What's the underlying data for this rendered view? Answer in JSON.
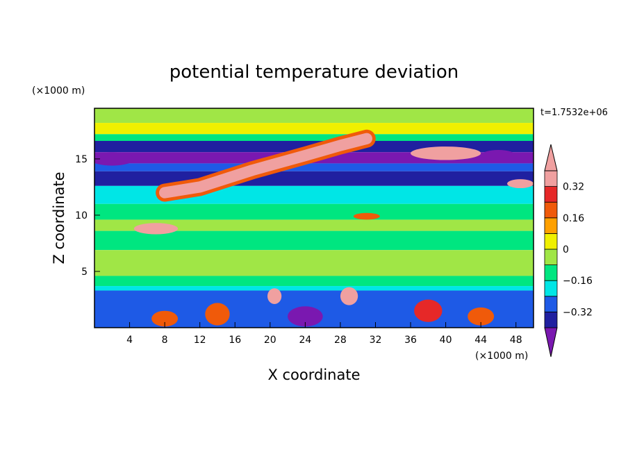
{
  "chart_data": {
    "type": "heatmap",
    "title": "potential temperature deviation",
    "xlabel": "X coordinate",
    "ylabel": "Z coordinate",
    "x_unit": "(×1000 m)",
    "y_unit": "(×1000 m)",
    "time_label": "t=1.7532e+06",
    "x_ticks": [
      4,
      8,
      12,
      16,
      20,
      24,
      28,
      32,
      36,
      40,
      44,
      48
    ],
    "y_ticks": [
      5,
      10,
      15
    ],
    "xlim": [
      0,
      50
    ],
    "ylim": [
      0,
      19.5
    ],
    "colorbar": {
      "levels": [
        -0.4,
        -0.32,
        -0.24,
        -0.16,
        -0.08,
        0,
        0.08,
        0.16,
        0.24,
        0.32,
        0.4
      ],
      "tick_labels": [
        "0.32",
        "0.16",
        "0",
        "−0.16",
        "−0.32"
      ],
      "tick_values": [
        0.32,
        0.16,
        0,
        -0.16,
        -0.32
      ],
      "colors": [
        "#7a18b0",
        "#2020a0",
        "#1e5ae6",
        "#00e6e6",
        "#00e680",
        "#a0e646",
        "#f0f000",
        "#ffa000",
        "#f05a0a",
        "#e62828",
        "#f0a0a0"
      ]
    },
    "bands": [
      {
        "z0": 18.2,
        "z1": 19.5,
        "level": 5
      },
      {
        "z0": 17.2,
        "z1": 18.2,
        "level": 6
      },
      {
        "z0": 16.6,
        "z1": 17.2,
        "level": 4
      },
      {
        "z0": 15.6,
        "z1": 16.6,
        "level": 1
      },
      {
        "z0": 14.6,
        "z1": 15.6,
        "level": 0
      },
      {
        "z0": 13.9,
        "z1": 14.6,
        "level": 2
      },
      {
        "z0": 12.6,
        "z1": 13.9,
        "level": 1
      },
      {
        "z0": 11.0,
        "z1": 12.6,
        "level": 3
      },
      {
        "z0": 9.6,
        "z1": 11.0,
        "level": 4
      },
      {
        "z0": 8.6,
        "z1": 9.6,
        "level": 5
      },
      {
        "z0": 6.9,
        "z1": 8.6,
        "level": 4
      },
      {
        "z0": 4.6,
        "z1": 6.9,
        "level": 5
      },
      {
        "z0": 3.7,
        "z1": 4.6,
        "level": 4
      },
      {
        "z0": 3.3,
        "z1": 3.7,
        "level": 3
      },
      {
        "z0": 0.0,
        "z1": 3.3,
        "level": 2
      }
    ],
    "features": [
      {
        "shape": "streak",
        "x": [
          8,
          12,
          18,
          24,
          28,
          31
        ],
        "z": [
          12.0,
          12.5,
          14.0,
          15.3,
          16.2,
          16.8
        ],
        "width": 1.0,
        "level": 10
      },
      {
        "shape": "blob",
        "cx": 40.0,
        "cz": 15.5,
        "rx": 4.0,
        "rz": 0.6,
        "level": 10
      },
      {
        "shape": "blob",
        "cx": 48.5,
        "cz": 12.8,
        "rx": 1.5,
        "rz": 0.4,
        "level": 10
      },
      {
        "shape": "blob",
        "cx": 7.0,
        "cz": 8.8,
        "rx": 2.5,
        "rz": 0.5,
        "level": 10
      },
      {
        "shape": "blob",
        "cx": 31.0,
        "cz": 9.9,
        "rx": 1.5,
        "rz": 0.3,
        "level": 8
      },
      {
        "shape": "blob",
        "cx": 20.5,
        "cz": 2.8,
        "rx": 0.8,
        "rz": 0.7,
        "level": 10
      },
      {
        "shape": "blob",
        "cx": 29.0,
        "cz": 2.8,
        "rx": 1.0,
        "rz": 0.8,
        "level": 10
      },
      {
        "shape": "blob",
        "cx": 14.0,
        "cz": 1.2,
        "rx": 1.4,
        "rz": 1.0,
        "level": 8
      },
      {
        "shape": "blob",
        "cx": 38.0,
        "cz": 1.5,
        "rx": 1.6,
        "rz": 1.0,
        "level": 9
      },
      {
        "shape": "blob",
        "cx": 44.0,
        "cz": 1.0,
        "rx": 1.5,
        "rz": 0.8,
        "level": 8
      },
      {
        "shape": "blob",
        "cx": 24.0,
        "cz": 1.0,
        "rx": 2.0,
        "rz": 0.9,
        "level": 0
      },
      {
        "shape": "blob",
        "cx": 8.0,
        "cz": 0.8,
        "rx": 1.5,
        "rz": 0.7,
        "level": 8
      },
      {
        "shape": "blob",
        "cx": 46.0,
        "cz": 15.3,
        "rx": 2.0,
        "rz": 0.5,
        "level": 0
      },
      {
        "shape": "blob",
        "cx": 2.0,
        "cz": 15.0,
        "rx": 2.5,
        "rz": 0.6,
        "level": 0
      }
    ]
  }
}
